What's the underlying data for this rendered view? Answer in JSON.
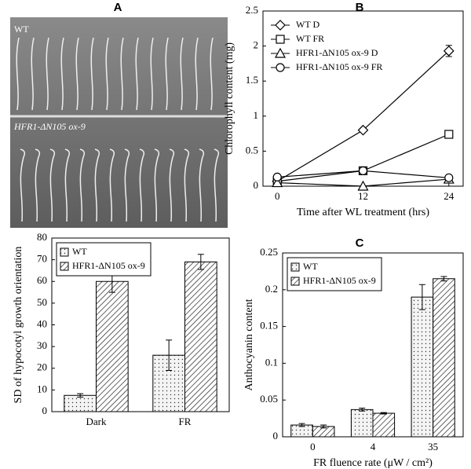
{
  "panels": [
    "A",
    "B",
    "C"
  ],
  "photo": {
    "labels": [
      "WT",
      "HFR1-ΔN105 ox-9"
    ]
  },
  "chart_data": [
    {
      "type": "bar",
      "ylabel": "SD of hypocotyl growth orientation",
      "categories": [
        "Dark",
        "FR"
      ],
      "ylim": [
        0,
        80
      ],
      "yticks": [
        0,
        10,
        20,
        30,
        40,
        50,
        60,
        70,
        80
      ],
      "legend": "top-left",
      "series": [
        {
          "name": "WT",
          "color": "#f4f4f4",
          "pattern": "dots",
          "values": [
            7.5,
            26
          ],
          "errors": [
            0.8,
            7
          ]
        },
        {
          "name": "HFR1-ΔN105 ox-9",
          "color": "#ffffff",
          "pattern": "hatch",
          "values": [
            60,
            69
          ],
          "errors": [
            5,
            3.5
          ]
        }
      ]
    },
    {
      "type": "line",
      "ylabel": "Chlorophyll content (mg)",
      "xlabel": "Time after WL treatment (hrs)",
      "x": [
        0,
        12,
        24
      ],
      "xlim": [
        -2,
        26
      ],
      "xticks": [
        0,
        12,
        24
      ],
      "ylim": [
        0,
        2.5
      ],
      "yticks": [
        0,
        0.5,
        1,
        1.5,
        2,
        2.5
      ],
      "legend": "top-left",
      "series": [
        {
          "name": "WT D",
          "color": "#000000",
          "marker": "diamond",
          "values": [
            0.07,
            0.8,
            1.93
          ],
          "errors": [
            null,
            null,
            0.08
          ]
        },
        {
          "name": "WT FR",
          "color": "#000000",
          "marker": "square",
          "values": [
            0.07,
            0.22,
            0.74
          ],
          "errors": [
            null,
            null,
            null
          ]
        },
        {
          "name": "HFR1-ΔN105 ox-9 D",
          "color": "#000000",
          "marker": "triangle",
          "values": [
            0.05,
            0.0,
            0.1
          ],
          "errors": [
            null,
            null,
            null
          ]
        },
        {
          "name": "HFR1-ΔN105 ox-9 FR",
          "color": "#000000",
          "marker": "circle",
          "values": [
            0.13,
            0.22,
            0.12
          ],
          "errors": [
            null,
            null,
            null
          ]
        }
      ]
    },
    {
      "type": "bar",
      "ylabel": "Anthocyanin content",
      "xlabel": "FR fluence rate (μW / cm²)",
      "categories": [
        "0",
        "4",
        "35"
      ],
      "ylim": [
        0,
        0.25
      ],
      "yticks": [
        0,
        0.05,
        0.1,
        0.15,
        0.2,
        0.25
      ],
      "legend": "top-left",
      "series": [
        {
          "name": "WT",
          "color": "#f4f4f4",
          "pattern": "dots",
          "values": [
            0.016,
            0.037,
            0.19
          ],
          "errors": [
            0.002,
            0.002,
            0.017
          ]
        },
        {
          "name": "HFR1-ΔN105 ox-9",
          "color": "#ffffff",
          "pattern": "hatch",
          "values": [
            0.014,
            0.032,
            0.215
          ],
          "errors": [
            0.002,
            0.001,
            0.003
          ]
        }
      ]
    }
  ]
}
